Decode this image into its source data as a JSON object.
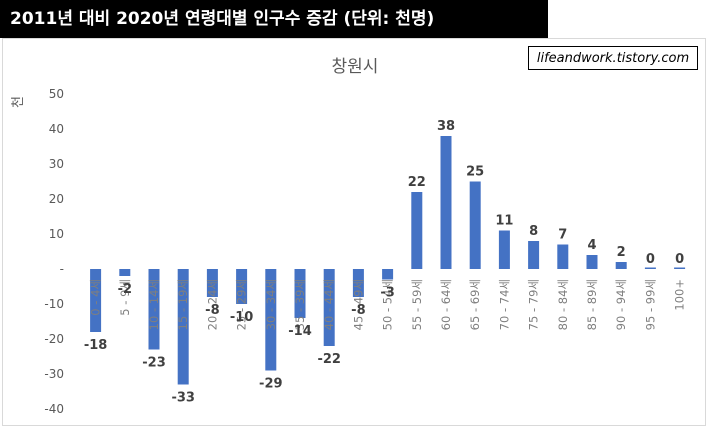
{
  "header": {
    "title": "2011년 대비 2020년 연령대별 인구수 증감 (단위: 천명)"
  },
  "watermark": "lifeandwork.tistory.com",
  "chart_data": {
    "type": "bar",
    "title": "창원시",
    "ylabel": "천",
    "xlabel": "",
    "ylim": [
      -40,
      50
    ],
    "yticks": [
      {
        "value": 50,
        "label": "50"
      },
      {
        "value": 40,
        "label": "40"
      },
      {
        "value": 30,
        "label": "30"
      },
      {
        "value": 20,
        "label": "20"
      },
      {
        "value": 10,
        "label": "10"
      },
      {
        "value": 0,
        "label": "-"
      },
      {
        "value": -10,
        "label": "-10"
      },
      {
        "value": -20,
        "label": "-20"
      },
      {
        "value": -30,
        "label": "-30"
      },
      {
        "value": -40,
        "label": "-40"
      }
    ],
    "grid": false,
    "bar_color": "#4472c4",
    "categories": [
      "0 - 4세",
      "5 - 9세",
      "10 - 14세",
      "15 - 19세",
      "20 - 24세",
      "25 - 29세",
      "30 - 34세",
      "35 - 39세",
      "40 - 44세",
      "45 - 49세",
      "50 - 54세",
      "55 - 59세",
      "60 - 64세",
      "65 - 69세",
      "70 - 74세",
      "75 - 79세",
      "80 - 84세",
      "85 - 89세",
      "90 - 94세",
      "95 - 99세",
      "100+"
    ],
    "values": [
      -18,
      -2,
      -23,
      -33,
      -8,
      -10,
      -29,
      -14,
      -22,
      -8,
      -3,
      22,
      38,
      25,
      11,
      8,
      7,
      4,
      2,
      0,
      0
    ],
    "data_labels": [
      "-18",
      "-2",
      "-23",
      "-33",
      "-8",
      "-10",
      "-29",
      "-14",
      "-22",
      "-8",
      "-3",
      "22",
      "38",
      "25",
      "11",
      "8",
      "7",
      "4",
      "2",
      "0",
      "0"
    ]
  }
}
